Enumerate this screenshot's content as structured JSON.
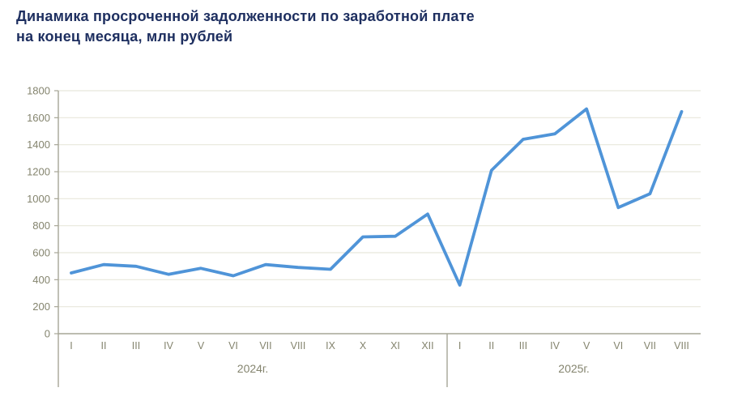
{
  "header": {
    "title_lines": [
      "Динамика просроченной задолженности по заработной плате",
      "на конец месяца, млн рублей"
    ]
  },
  "colors": {
    "title": "#1e2f60",
    "axis_line": "#a6a596",
    "axis_text": "#84846e",
    "grid": "#e8e7dc",
    "line": "#4f94d8",
    "background": "#ffffff"
  },
  "chart_data": {
    "type": "line",
    "title": "Динамика просроченной задолженности по заработной плате на конец месяца, млн рублей",
    "xlabel": "",
    "ylabel": "",
    "ylim": [
      0,
      1800
    ],
    "yticks": [
      0,
      200,
      400,
      600,
      800,
      1000,
      1200,
      1400,
      1600,
      1800
    ],
    "grid": true,
    "legend_position": "none",
    "groups": [
      {
        "year_label": "2024г.",
        "categories": [
          "I",
          "II",
          "III",
          "IV",
          "V",
          "VI",
          "VII",
          "VIII",
          "IX",
          "X",
          "XI",
          "XII"
        ],
        "values": [
          450,
          512,
          499,
          440,
          484,
          429,
          512,
          491,
          477,
          717,
          722,
          886
        ]
      },
      {
        "year_label": "2025г.",
        "categories": [
          "I",
          "II",
          "III",
          "IV",
          "V",
          "VI",
          "VII",
          "VIII"
        ],
        "values": [
          360,
          1210,
          1440,
          1480,
          1665,
          934,
          1036,
          1645
        ]
      }
    ]
  }
}
